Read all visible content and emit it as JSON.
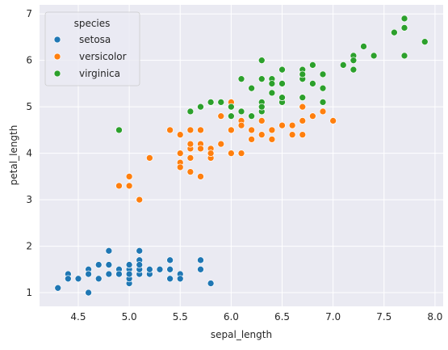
{
  "chart_data": {
    "type": "scatter",
    "xlabel": "sepal_length",
    "ylabel": "petal_length",
    "xlim": [
      4.12,
      8.08
    ],
    "ylim": [
      0.705,
      7.195
    ],
    "xticks": [
      4.5,
      5.0,
      5.5,
      6.0,
      6.5,
      7.0,
      7.5,
      8.0
    ],
    "xtick_labels": [
      "4.5",
      "5.0",
      "5.5",
      "6.0",
      "6.5",
      "7.0",
      "7.5",
      "8.0"
    ],
    "yticks": [
      1,
      2,
      3,
      4,
      5,
      6,
      7
    ],
    "ytick_labels": [
      "1",
      "2",
      "3",
      "4",
      "5",
      "6",
      "7"
    ],
    "grid": true,
    "background": "#eaeaf2",
    "legend": {
      "title": "species",
      "placement": "top-left"
    },
    "series": [
      {
        "name": "setosa",
        "color": "#1f77b4",
        "points": [
          [
            5.1,
            1.4
          ],
          [
            4.9,
            1.4
          ],
          [
            4.7,
            1.3
          ],
          [
            4.6,
            1.5
          ],
          [
            5.0,
            1.4
          ],
          [
            5.4,
            1.7
          ],
          [
            4.6,
            1.4
          ],
          [
            5.0,
            1.5
          ],
          [
            4.4,
            1.4
          ],
          [
            4.9,
            1.5
          ],
          [
            5.4,
            1.5
          ],
          [
            4.8,
            1.6
          ],
          [
            4.8,
            1.4
          ],
          [
            4.3,
            1.1
          ],
          [
            5.8,
            1.2
          ],
          [
            5.7,
            1.5
          ],
          [
            5.4,
            1.3
          ],
          [
            5.1,
            1.4
          ],
          [
            5.7,
            1.7
          ],
          [
            5.1,
            1.5
          ],
          [
            5.4,
            1.7
          ],
          [
            5.1,
            1.5
          ],
          [
            4.6,
            1.0
          ],
          [
            5.1,
            1.7
          ],
          [
            4.8,
            1.9
          ],
          [
            5.0,
            1.6
          ],
          [
            5.0,
            1.6
          ],
          [
            5.2,
            1.5
          ],
          [
            5.2,
            1.4
          ],
          [
            4.7,
            1.6
          ],
          [
            4.8,
            1.6
          ],
          [
            5.4,
            1.5
          ],
          [
            5.2,
            1.5
          ],
          [
            5.5,
            1.4
          ],
          [
            4.9,
            1.5
          ],
          [
            5.0,
            1.2
          ],
          [
            5.5,
            1.3
          ],
          [
            4.9,
            1.4
          ],
          [
            4.4,
            1.3
          ],
          [
            5.1,
            1.5
          ],
          [
            5.0,
            1.3
          ],
          [
            4.5,
            1.3
          ],
          [
            4.4,
            1.3
          ],
          [
            5.0,
            1.6
          ],
          [
            5.1,
            1.9
          ],
          [
            4.8,
            1.4
          ],
          [
            5.1,
            1.6
          ],
          [
            4.6,
            1.4
          ],
          [
            5.3,
            1.5
          ],
          [
            5.0,
            1.4
          ]
        ]
      },
      {
        "name": "versicolor",
        "color": "#ff7f0e",
        "points": [
          [
            7.0,
            4.7
          ],
          [
            6.4,
            4.5
          ],
          [
            6.9,
            4.9
          ],
          [
            5.5,
            4.0
          ],
          [
            6.5,
            4.6
          ],
          [
            5.7,
            4.5
          ],
          [
            6.3,
            4.7
          ],
          [
            4.9,
            3.3
          ],
          [
            6.6,
            4.6
          ],
          [
            5.2,
            3.9
          ],
          [
            5.0,
            3.5
          ],
          [
            5.9,
            4.2
          ],
          [
            6.0,
            4.0
          ],
          [
            6.1,
            4.7
          ],
          [
            5.6,
            3.6
          ],
          [
            6.7,
            4.4
          ],
          [
            5.6,
            4.5
          ],
          [
            5.8,
            4.1
          ],
          [
            6.2,
            4.5
          ],
          [
            5.6,
            3.9
          ],
          [
            5.9,
            4.8
          ],
          [
            6.1,
            4.0
          ],
          [
            6.3,
            4.9
          ],
          [
            6.1,
            4.7
          ],
          [
            6.4,
            4.3
          ],
          [
            6.6,
            4.4
          ],
          [
            6.8,
            4.8
          ],
          [
            6.7,
            5.0
          ],
          [
            6.0,
            4.5
          ],
          [
            5.7,
            3.5
          ],
          [
            5.5,
            3.8
          ],
          [
            5.5,
            3.7
          ],
          [
            5.8,
            3.9
          ],
          [
            6.0,
            5.1
          ],
          [
            5.4,
            4.5
          ],
          [
            6.0,
            4.5
          ],
          [
            6.7,
            4.7
          ],
          [
            6.3,
            4.4
          ],
          [
            5.6,
            4.1
          ],
          [
            5.5,
            4.0
          ],
          [
            5.5,
            4.4
          ],
          [
            6.1,
            4.6
          ],
          [
            5.8,
            4.0
          ],
          [
            5.0,
            3.3
          ],
          [
            5.6,
            4.2
          ],
          [
            5.7,
            4.2
          ],
          [
            5.7,
            4.2
          ],
          [
            6.2,
            4.3
          ],
          [
            5.1,
            3.0
          ],
          [
            5.7,
            4.1
          ]
        ]
      },
      {
        "name": "virginica",
        "color": "#2ca02c",
        "points": [
          [
            6.3,
            6.0
          ],
          [
            5.8,
            5.1
          ],
          [
            7.1,
            5.9
          ],
          [
            6.3,
            5.6
          ],
          [
            6.5,
            5.8
          ],
          [
            7.6,
            6.6
          ],
          [
            4.9,
            4.5
          ],
          [
            7.3,
            6.3
          ],
          [
            6.7,
            5.8
          ],
          [
            7.2,
            6.1
          ],
          [
            6.5,
            5.1
          ],
          [
            6.4,
            5.3
          ],
          [
            6.8,
            5.5
          ],
          [
            5.7,
            5.0
          ],
          [
            5.8,
            5.1
          ],
          [
            6.4,
            5.3
          ],
          [
            6.5,
            5.5
          ],
          [
            7.7,
            6.7
          ],
          [
            7.7,
            6.9
          ],
          [
            6.0,
            5.0
          ],
          [
            6.9,
            5.7
          ],
          [
            5.6,
            4.9
          ],
          [
            7.7,
            6.7
          ],
          [
            6.3,
            4.9
          ],
          [
            6.7,
            5.7
          ],
          [
            7.2,
            6.0
          ],
          [
            6.2,
            4.8
          ],
          [
            6.1,
            4.9
          ],
          [
            6.4,
            5.6
          ],
          [
            7.2,
            5.8
          ],
          [
            7.4,
            6.1
          ],
          [
            7.9,
            6.4
          ],
          [
            6.4,
            5.6
          ],
          [
            6.3,
            5.1
          ],
          [
            6.1,
            5.6
          ],
          [
            7.7,
            6.1
          ],
          [
            6.3,
            5.6
          ],
          [
            6.4,
            5.5
          ],
          [
            6.0,
            4.8
          ],
          [
            6.9,
            5.4
          ],
          [
            6.7,
            5.6
          ],
          [
            6.9,
            5.1
          ],
          [
            5.8,
            5.1
          ],
          [
            6.8,
            5.9
          ],
          [
            6.7,
            5.7
          ],
          [
            6.7,
            5.2
          ],
          [
            6.3,
            5.0
          ],
          [
            6.5,
            5.2
          ],
          [
            6.2,
            5.4
          ],
          [
            5.9,
            5.1
          ]
        ]
      }
    ]
  }
}
